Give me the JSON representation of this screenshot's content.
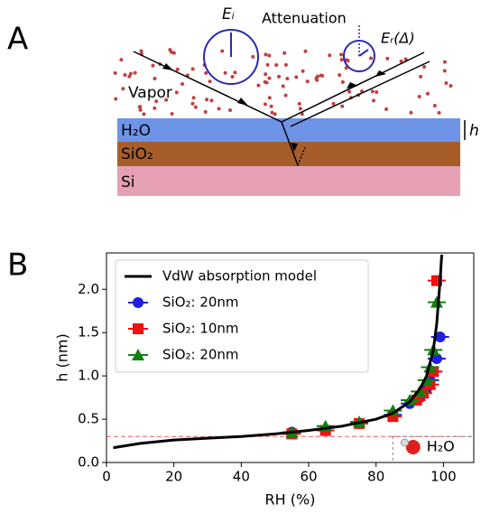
{
  "panel_a": {
    "label": "A",
    "e_i": "Eᵢ",
    "attenuation": "Attenuation",
    "e_r": "Eᵣ(Δ)",
    "vapor": "Vapor",
    "layers": [
      "H₂O",
      "SiO₂",
      "Si"
    ],
    "thickness": "h"
  },
  "chart_data": {
    "type": "scatter",
    "panel_label": "B",
    "xlabel": "RH (%)",
    "ylabel": "h (nm)",
    "xlim": [
      0,
      109
    ],
    "ylim": [
      0,
      2.42
    ],
    "xticks": [
      0,
      20,
      40,
      60,
      80,
      100
    ],
    "yticks": [
      {
        "value": 0,
        "label": "0.0"
      },
      0.5,
      {
        "value": 1,
        "label": "1.0"
      },
      1.5,
      {
        "value": 2,
        "label": "2.0"
      }
    ],
    "reference_line": {
      "y": 0.3,
      "color": "#e06060"
    },
    "annotation": "H₂O",
    "legend": "upper left",
    "series": [
      {
        "name": "VdW absorption model",
        "color": "#000000",
        "style": "line",
        "x": [
          2,
          10,
          20,
          30,
          40,
          50,
          60,
          70,
          80,
          85,
          90,
          93,
          95,
          97,
          98,
          99,
          99.5
        ],
        "values": [
          0.17,
          0.22,
          0.26,
          0.28,
          0.3,
          0.33,
          0.37,
          0.42,
          0.5,
          0.57,
          0.7,
          0.85,
          1.0,
          1.3,
          1.6,
          2.1,
          2.4
        ]
      },
      {
        "name": "SiO₂: 20nm",
        "color": "#1f1fe0",
        "style": "circle",
        "x": [
          55,
          75,
          85,
          90,
          93,
          95,
          96,
          97,
          98,
          99
        ],
        "values": [
          0.35,
          0.45,
          0.55,
          0.68,
          0.75,
          0.85,
          0.95,
          1.05,
          1.2,
          1.45
        ]
      },
      {
        "name": "SiO₂: 10nm",
        "color": "#f01010",
        "style": "square",
        "x": [
          55,
          65,
          75,
          85,
          92,
          94,
          96,
          97,
          98
        ],
        "values": [
          0.33,
          0.37,
          0.45,
          0.53,
          0.72,
          0.8,
          0.9,
          1.05,
          2.1
        ]
      },
      {
        "name": "SiO₂: 20nm",
        "color": "#108010",
        "style": "triangle",
        "x": [
          55,
          65,
          75,
          85,
          90,
          93,
          95,
          96,
          97,
          98
        ],
        "values": [
          0.35,
          0.42,
          0.47,
          0.6,
          0.72,
          0.82,
          0.95,
          1.1,
          1.3,
          1.85
        ]
      }
    ]
  }
}
